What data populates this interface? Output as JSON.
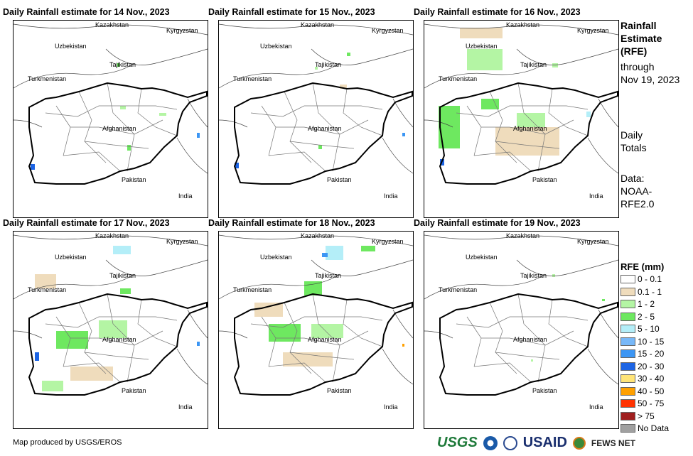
{
  "panels": [
    {
      "title": "Daily Rainfall estimate for 14 Nov., 2023"
    },
    {
      "title": "Daily Rainfall estimate for 15 Nov., 2023"
    },
    {
      "title": "Daily Rainfall estimate for 16 Nov., 2023"
    },
    {
      "title": "Daily Rainfall estimate for 17 Nov., 2023"
    },
    {
      "title": "Daily Rainfall estimate for 18 Nov., 2023"
    },
    {
      "title": "Daily Rainfall estimate for 19 Nov., 2023"
    }
  ],
  "map_labels": {
    "kazakhstan": "Kazakhstan",
    "kyrgyzstan": "Kyrgyzstan",
    "uzbekistan": "Uzbekistan",
    "tajikistan": "Tajikistan",
    "turkmenistan": "Turkmenistan",
    "afghanistan": "Afghanistan",
    "pakistan": "Pakistan",
    "india": "India"
  },
  "side": {
    "line1": "Rainfall",
    "line2": "Estimate",
    "line3": "(RFE)",
    "line4": "through",
    "line5": "Nov 19, 2023",
    "totals1": "Daily",
    "totals2": "Totals",
    "data1": "Data:",
    "data2": "NOAA-",
    "data3": "RFE2.0"
  },
  "legend": {
    "title": "RFE (mm)",
    "items": [
      {
        "label": "0 - 0.1",
        "color": "#ffffff"
      },
      {
        "label": "0.1 - 1",
        "color": "#efdcbc"
      },
      {
        "label": "1 - 2",
        "color": "#b4f5a4"
      },
      {
        "label": "2 - 5",
        "color": "#6ee860"
      },
      {
        "label": "5 - 10",
        "color": "#b4eef8"
      },
      {
        "label": "10 - 15",
        "color": "#78b8f8"
      },
      {
        "label": "15 - 20",
        "color": "#3c96f4"
      },
      {
        "label": "20 - 30",
        "color": "#1c64e4"
      },
      {
        "label": "30 - 40",
        "color": "#ffe478"
      },
      {
        "label": "40 - 50",
        "color": "#ffa000"
      },
      {
        "label": "50 - 75",
        "color": "#ff3200"
      },
      {
        "label": "> 75",
        "color": "#a01e1e"
      },
      {
        "label": "No Data",
        "color": "#a0a0a0"
      }
    ]
  },
  "footer": {
    "credit": "Map produced by USGS/EROS",
    "logos": [
      "USGS",
      "NOAA",
      "USAID",
      "FEWS NET"
    ]
  }
}
